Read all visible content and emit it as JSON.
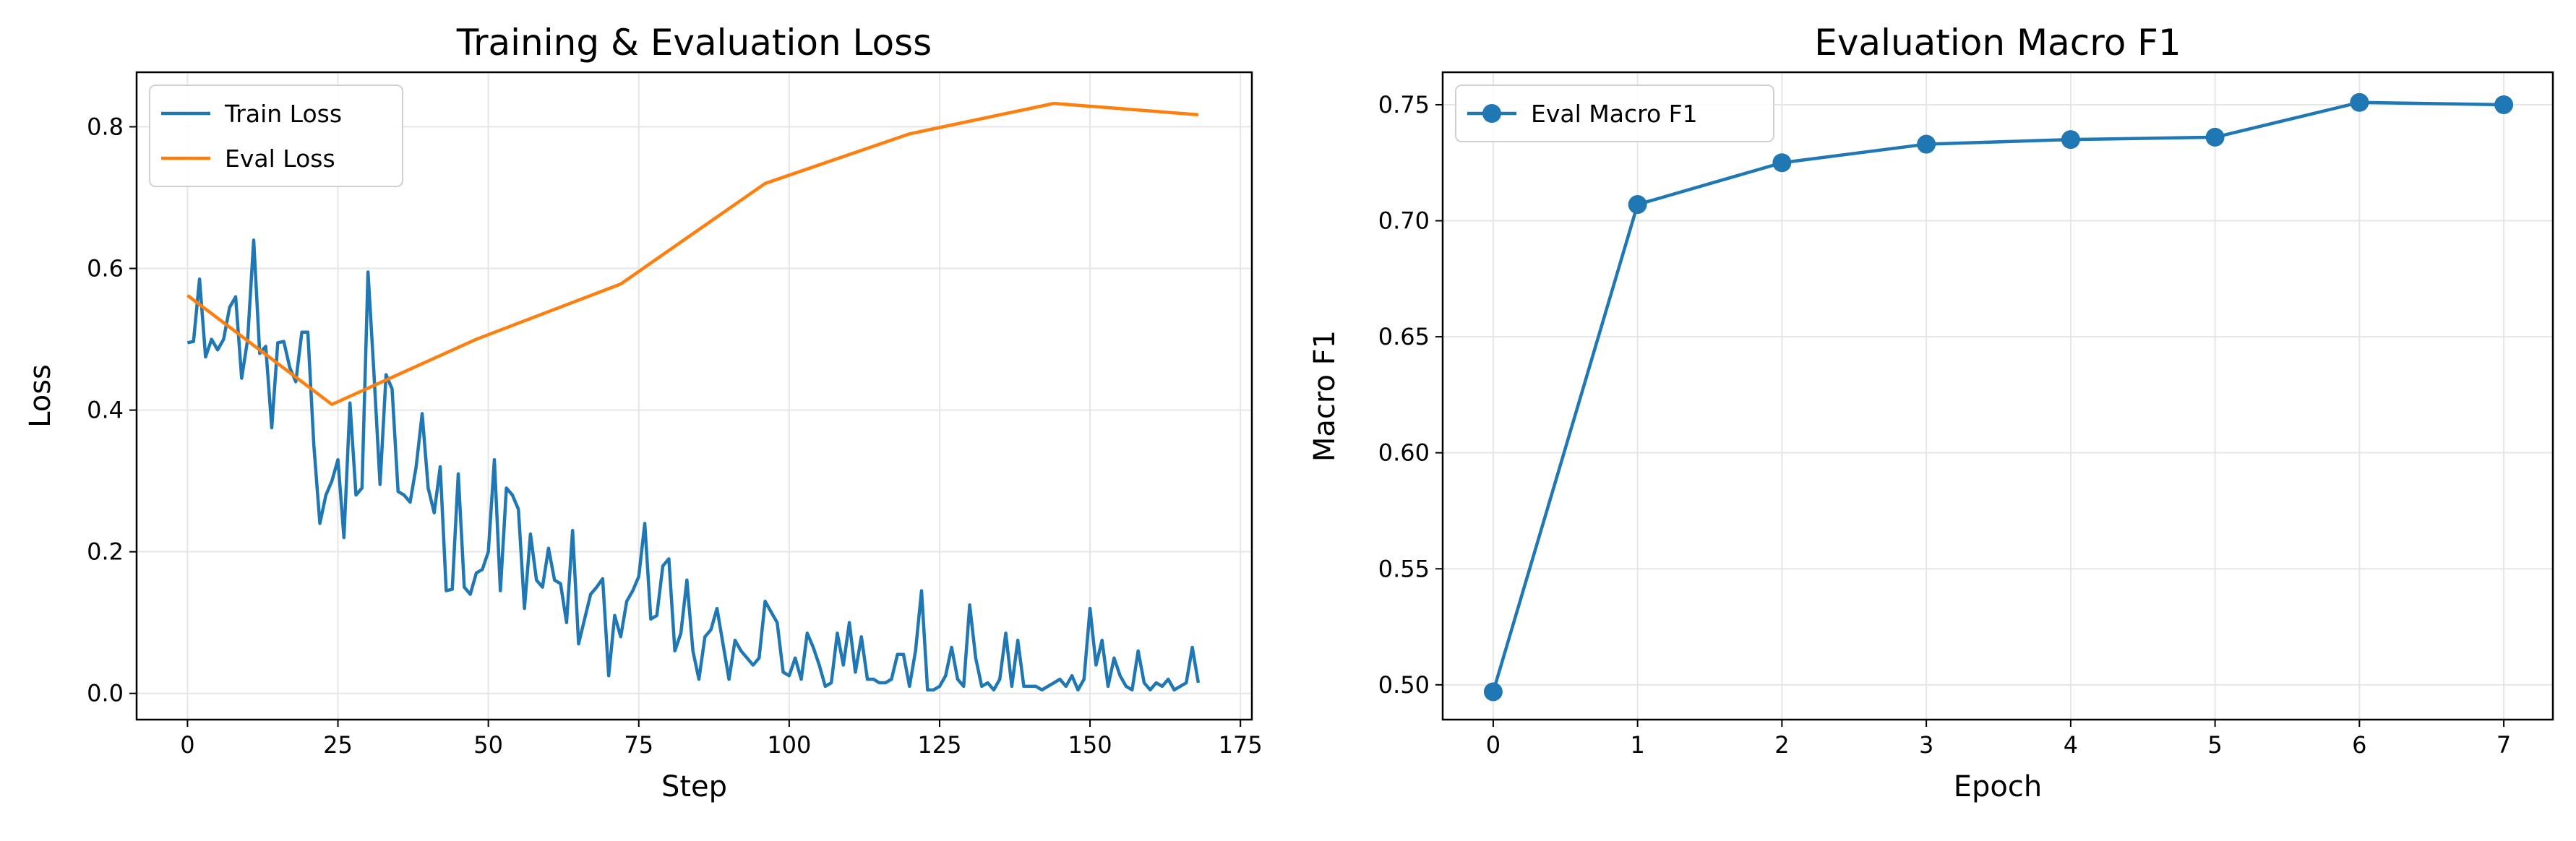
{
  "chart_data": [
    {
      "type": "line",
      "title": "Training & Evaluation Loss",
      "xlabel": "Step",
      "ylabel": "Loss",
      "xlim": [
        -8.46,
        176.9
      ],
      "ylim": [
        -0.037,
        0.877
      ],
      "xticks": [
        0,
        25,
        50,
        75,
        100,
        125,
        150,
        175
      ],
      "yticks": [
        {
          "value": 0,
          "label": "0.0"
        },
        0.2,
        0.4,
        0.6,
        0.8
      ],
      "grid": true,
      "legend": "upper left",
      "series": [
        {
          "name": "Train Loss",
          "color": "#1f77b4",
          "x": [
            0,
            1,
            2,
            3,
            4,
            5,
            6,
            7,
            8,
            9,
            10,
            11,
            12,
            13,
            14,
            15,
            16,
            17,
            18,
            19,
            20,
            21,
            22,
            23,
            24,
            25,
            26,
            27,
            28,
            29,
            30,
            31,
            32,
            33,
            34,
            35,
            36,
            37,
            38,
            39,
            40,
            41,
            42,
            43,
            44,
            45,
            46,
            47,
            48,
            49,
            50,
            51,
            52,
            53,
            54,
            55,
            56,
            57,
            58,
            59,
            60,
            61,
            62,
            63,
            64,
            65,
            66,
            67,
            68,
            69,
            70,
            71,
            72,
            73,
            74,
            75,
            76,
            77,
            78,
            79,
            80,
            81,
            82,
            83,
            84,
            85,
            86,
            87,
            88,
            89,
            90,
            91,
            92,
            93,
            94,
            95,
            96,
            97,
            98,
            99,
            100,
            101,
            102,
            103,
            104,
            105,
            106,
            107,
            108,
            109,
            110,
            111,
            112,
            113,
            114,
            115,
            116,
            117,
            118,
            119,
            120,
            121,
            122,
            123,
            124,
            125,
            126,
            127,
            128,
            129,
            130,
            131,
            132,
            133,
            134,
            135,
            136,
            137,
            138,
            139,
            140,
            141,
            142,
            143,
            144,
            145,
            146,
            147,
            148,
            149,
            150,
            151,
            152,
            153,
            154,
            155,
            156,
            157,
            158,
            159,
            160,
            161,
            162,
            163,
            164,
            165,
            166,
            167,
            168
          ],
          "values": [
            0.495,
            0.497,
            0.585,
            0.475,
            0.5,
            0.485,
            0.5,
            0.545,
            0.56,
            0.445,
            0.5,
            0.64,
            0.48,
            0.49,
            0.375,
            0.495,
            0.497,
            0.46,
            0.44,
            0.51,
            0.51,
            0.35,
            0.24,
            0.28,
            0.3,
            0.33,
            0.22,
            0.41,
            0.28,
            0.29,
            0.595,
            0.45,
            0.295,
            0.45,
            0.43,
            0.285,
            0.28,
            0.27,
            0.32,
            0.395,
            0.29,
            0.255,
            0.32,
            0.145,
            0.147,
            0.31,
            0.15,
            0.14,
            0.17,
            0.175,
            0.2,
            0.33,
            0.145,
            0.29,
            0.28,
            0.26,
            0.12,
            0.225,
            0.16,
            0.15,
            0.205,
            0.16,
            0.155,
            0.1,
            0.23,
            0.07,
            0.105,
            0.14,
            0.15,
            0.162,
            0.025,
            0.11,
            0.08,
            0.13,
            0.145,
            0.165,
            0.24,
            0.105,
            0.11,
            0.18,
            0.19,
            0.06,
            0.085,
            0.16,
            0.06,
            0.02,
            0.08,
            0.09,
            0.12,
            0.07,
            0.02,
            0.075,
            0.06,
            0.05,
            0.04,
            0.05,
            0.13,
            0.115,
            0.1,
            0.03,
            0.025,
            0.05,
            0.02,
            0.085,
            0.065,
            0.04,
            0.01,
            0.015,
            0.085,
            0.04,
            0.1,
            0.03,
            0.08,
            0.02,
            0.02,
            0.015,
            0.015,
            0.02,
            0.055,
            0.055,
            0.01,
            0.06,
            0.145,
            0.005,
            0.005,
            0.01,
            0.025,
            0.065,
            0.02,
            0.01,
            0.125,
            0.05,
            0.01,
            0.015,
            0.005,
            0.02,
            0.085,
            0.01,
            0.075,
            0.01,
            0.01,
            0.01,
            0.005,
            0.01,
            0.015,
            0.02,
            0.01,
            0.025,
            0.005,
            0.02,
            0.12,
            0.04,
            0.075,
            0.01,
            0.05,
            0.025,
            0.01,
            0.005,
            0.06,
            0.015,
            0.005,
            0.015,
            0.01,
            0.02,
            0.005,
            0.01,
            0.015,
            0.065,
            0.015
          ]
        },
        {
          "name": "Eval Loss",
          "color": "#ff7f0e",
          "x": [
            0,
            24,
            48,
            72,
            96,
            120,
            144,
            168
          ],
          "values": [
            0.562,
            0.408,
            0.5,
            0.578,
            0.72,
            0.79,
            0.833,
            0.817
          ]
        }
      ]
    },
    {
      "type": "line",
      "title": "Evaluation Macro F1",
      "xlabel": "Epoch",
      "ylabel": "Macro F1",
      "xlim": [
        -0.35,
        7.34
      ],
      "ylim": [
        0.485,
        0.764
      ],
      "xticks": [
        0,
        1,
        2,
        3,
        4,
        5,
        6,
        7
      ],
      "yticks": [
        {
          "value": 0.5,
          "label": "0.50"
        },
        0.55,
        {
          "value": 0.6,
          "label": "0.60"
        },
        0.65,
        {
          "value": 0.7,
          "label": "0.70"
        },
        0.75
      ],
      "grid": true,
      "legend": "upper left",
      "series": [
        {
          "name": "Eval Macro F1",
          "color": "#1f77b4",
          "marker": "o",
          "x": [
            0,
            1,
            2,
            3,
            4,
            5,
            6,
            7
          ],
          "values": [
            0.497,
            0.707,
            0.725,
            0.733,
            0.735,
            0.736,
            0.751,
            0.75
          ]
        }
      ]
    }
  ]
}
